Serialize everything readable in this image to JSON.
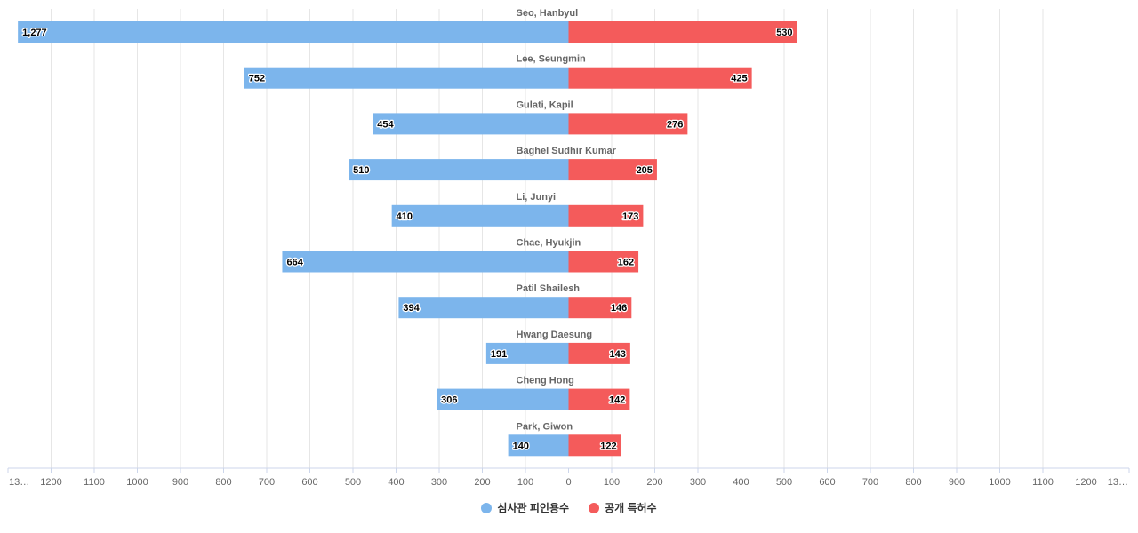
{
  "chart_data": {
    "type": "bar",
    "orientation": "horizontal-diverging",
    "categories": [
      "Seo, Hanbyul",
      "Lee, Seungmin",
      "Gulati, Kapil",
      "Baghel Sudhir Kumar",
      "Li, Junyi",
      "Chae, Hyukjin",
      "Patil Shailesh",
      "Hwang Daesung",
      "Cheng Hong",
      "Park, Giwon"
    ],
    "series": [
      {
        "name": "심사관 피인용수",
        "color": "#7cb5ec",
        "side": "left",
        "values": [
          1277,
          752,
          454,
          510,
          410,
          664,
          394,
          191,
          306,
          140
        ],
        "labels": [
          "1,277",
          "752",
          "454",
          "510",
          "410",
          "664",
          "394",
          "191",
          "306",
          "140"
        ]
      },
      {
        "name": "공개 특허수",
        "color": "#f45b5b",
        "side": "right",
        "values": [
          530,
          425,
          276,
          205,
          173,
          162,
          146,
          143,
          142,
          122
        ],
        "labels": [
          "530",
          "425",
          "276",
          "205",
          "173",
          "162",
          "146",
          "143",
          "142",
          "122"
        ]
      }
    ],
    "x_ticks_left": [
      "13…",
      "1200",
      "1100",
      "1000",
      "900",
      "800",
      "700",
      "600",
      "500",
      "400",
      "300",
      "200",
      "100"
    ],
    "x_ticks_right": [
      "0",
      "100",
      "200",
      "300",
      "400",
      "500",
      "600",
      "700",
      "800",
      "900",
      "1000",
      "1100",
      "1200",
      "13…"
    ],
    "xlim": [
      -1300,
      1300
    ],
    "grid": true,
    "legend_position": "bottom-center"
  }
}
